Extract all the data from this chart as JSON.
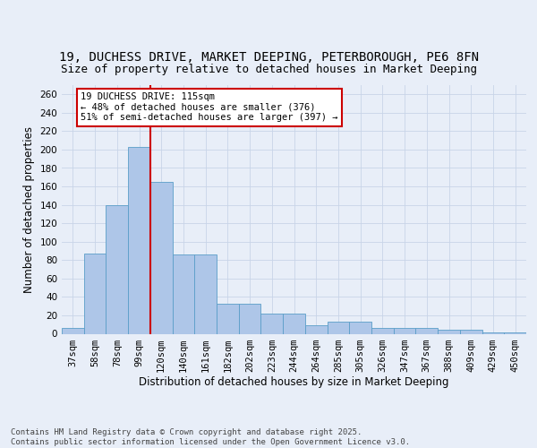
{
  "title_line1": "19, DUCHESS DRIVE, MARKET DEEPING, PETERBOROUGH, PE6 8FN",
  "title_line2": "Size of property relative to detached houses in Market Deeping",
  "xlabel": "Distribution of detached houses by size in Market Deeping",
  "ylabel": "Number of detached properties",
  "categories": [
    "37sqm",
    "58sqm",
    "78sqm",
    "99sqm",
    "120sqm",
    "140sqm",
    "161sqm",
    "182sqm",
    "202sqm",
    "223sqm",
    "244sqm",
    "264sqm",
    "285sqm",
    "305sqm",
    "326sqm",
    "347sqm",
    "367sqm",
    "388sqm",
    "409sqm",
    "429sqm",
    "450sqm"
  ],
  "values": [
    6,
    87,
    140,
    203,
    165,
    86,
    86,
    33,
    33,
    22,
    22,
    9,
    13,
    13,
    6,
    6,
    6,
    4,
    4,
    1,
    1
  ],
  "bar_color": "#aec6e8",
  "bar_edge_color": "#5a9ec8",
  "vline_color": "#cc0000",
  "annotation_text": "19 DUCHESS DRIVE: 115sqm\n← 48% of detached houses are smaller (376)\n51% of semi-detached houses are larger (397) →",
  "annotation_box_color": "#ffffff",
  "annotation_box_edge_color": "#cc0000",
  "ylim": [
    0,
    270
  ],
  "yticks": [
    0,
    20,
    40,
    60,
    80,
    100,
    120,
    140,
    160,
    180,
    200,
    220,
    240,
    260
  ],
  "grid_color": "#c8d4e8",
  "background_color": "#e8eef8",
  "footer_text": "Contains HM Land Registry data © Crown copyright and database right 2025.\nContains public sector information licensed under the Open Government Licence v3.0.",
  "title_fontsize": 10,
  "subtitle_fontsize": 9,
  "axis_label_fontsize": 8.5,
  "tick_fontsize": 7.5,
  "annotation_fontsize": 7.5,
  "footer_fontsize": 6.5
}
